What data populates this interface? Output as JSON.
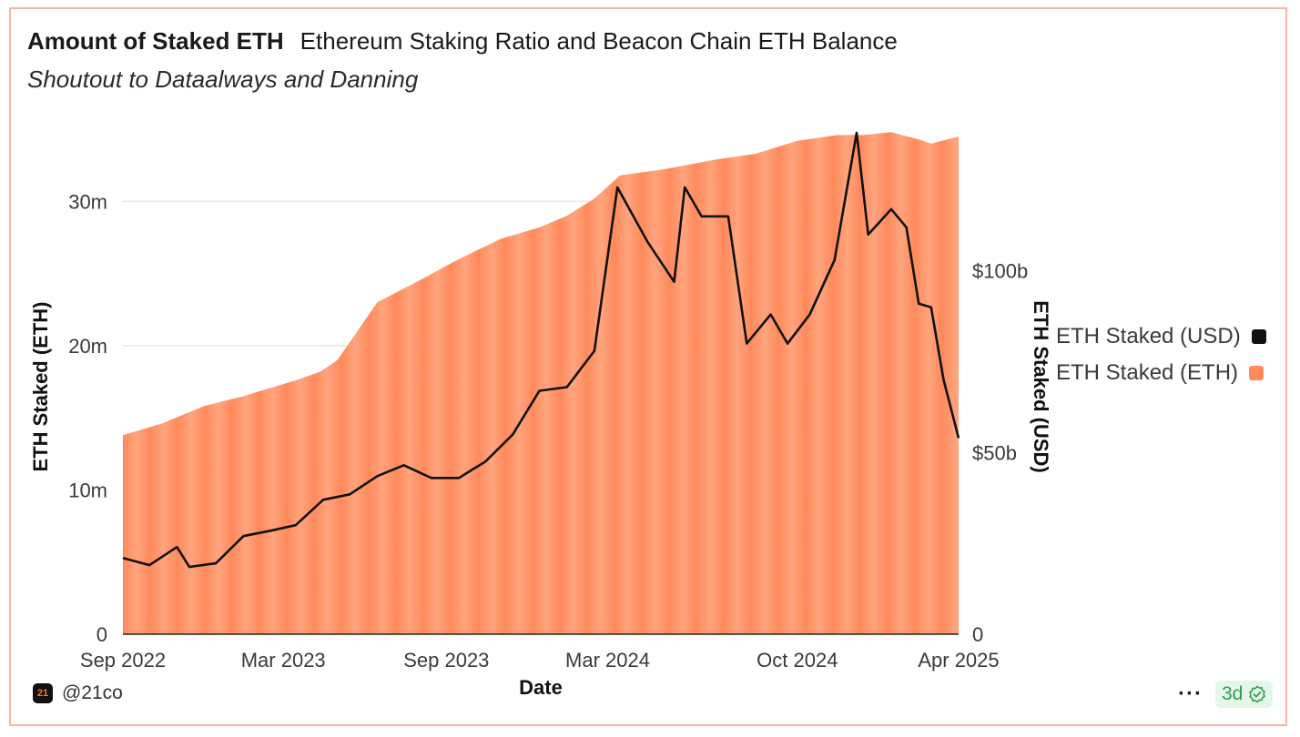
{
  "header": {
    "title": "Amount of Staked ETH",
    "subtitle": "Ethereum Staking Ratio and Beacon Chain ETH Balance",
    "note": "Shoutout to Dataalways and Danning"
  },
  "footer": {
    "handle": "@21co",
    "logo_text": "21",
    "more_icon": "ellipsis-icon",
    "refresh_badge": "3d",
    "badge_icon": "check-badge-icon"
  },
  "colors": {
    "area": "#ff8a5b",
    "line": "#111111",
    "border": "#f4b9a6"
  },
  "chart_data": {
    "type": "area",
    "xlabel": "Date",
    "ylabel_left": "ETH Staked (ETH)",
    "ylabel_right": "ETH Staked (USD)",
    "x_ticks": [
      "Sep 2022",
      "Mar 2023",
      "Sep 2023",
      "Mar 2024",
      "Oct 2024",
      "Apr 2025"
    ],
    "y_left_ticks": [
      "0",
      "10m",
      "20m",
      "30m"
    ],
    "y_right_ticks": [
      "0",
      "$50b",
      "$100b"
    ],
    "y_left_range": [
      0,
      34500000
    ],
    "y_right_range": [
      0,
      137000000000
    ],
    "x_range": [
      "2022-09-01",
      "2025-04-01"
    ],
    "legend": {
      "position": "right",
      "items": [
        "ETH Staked (USD)",
        "ETH Staked (ETH)"
      ]
    },
    "grid": "horizontal",
    "series": [
      {
        "name": "ETH Staked (ETH)",
        "axis": "left",
        "style": "area",
        "x": [
          "2022-09-01",
          "2022-10-15",
          "2022-12-01",
          "2023-01-15",
          "2023-03-15",
          "2023-04-12",
          "2023-05-01",
          "2023-06-15",
          "2023-08-01",
          "2023-09-15",
          "2023-11-01",
          "2023-12-15",
          "2024-01-15",
          "2024-02-15",
          "2024-03-15",
          "2024-05-01",
          "2024-07-01",
          "2024-08-15",
          "2024-10-01",
          "2024-11-15",
          "2024-12-15",
          "2025-01-15",
          "2025-02-15",
          "2025-03-01",
          "2025-04-01"
        ],
        "values": [
          13800000,
          14600000,
          15800000,
          16500000,
          17600000,
          18200000,
          19000000,
          23000000,
          24500000,
          26000000,
          27400000,
          28200000,
          29000000,
          30200000,
          31800000,
          32200000,
          32900000,
          33300000,
          34200000,
          34600000,
          34600000,
          34800000,
          34300000,
          34000000,
          34500000
        ]
      },
      {
        "name": "ETH Staked (USD)",
        "axis": "right",
        "style": "line",
        "x": [
          "2022-09-01",
          "2022-10-01",
          "2022-11-01",
          "2022-11-15",
          "2022-12-15",
          "2023-01-15",
          "2023-02-15",
          "2023-03-15",
          "2023-04-15",
          "2023-05-15",
          "2023-06-15",
          "2023-07-15",
          "2023-08-15",
          "2023-09-15",
          "2023-10-15",
          "2023-11-15",
          "2023-12-15",
          "2024-01-15",
          "2024-02-15",
          "2024-03-12",
          "2024-04-15",
          "2024-05-15",
          "2024-05-27",
          "2024-06-15",
          "2024-07-15",
          "2024-08-05",
          "2024-09-01",
          "2024-09-20",
          "2024-10-15",
          "2024-11-12",
          "2024-12-07",
          "2024-12-20",
          "2025-01-15",
          "2025-02-01",
          "2025-02-15",
          "2025-03-01",
          "2025-03-15",
          "2025-04-01"
        ],
        "values": [
          21000000000,
          19000000000,
          24000000000,
          18500000000,
          19500000000,
          27000000000,
          28500000000,
          30000000000,
          37000000000,
          38500000000,
          43500000000,
          46500000000,
          43000000000,
          43000000000,
          47500000000,
          55000000000,
          67000000000,
          68000000000,
          78000000000,
          123000000000,
          108000000000,
          97000000000,
          123000000000,
          115000000000,
          115000000000,
          80000000000,
          88000000000,
          80000000000,
          88000000000,
          103000000000,
          138000000000,
          110000000000,
          117000000000,
          112000000000,
          91000000000,
          90000000000,
          70000000000,
          54000000000
        ]
      }
    ]
  }
}
